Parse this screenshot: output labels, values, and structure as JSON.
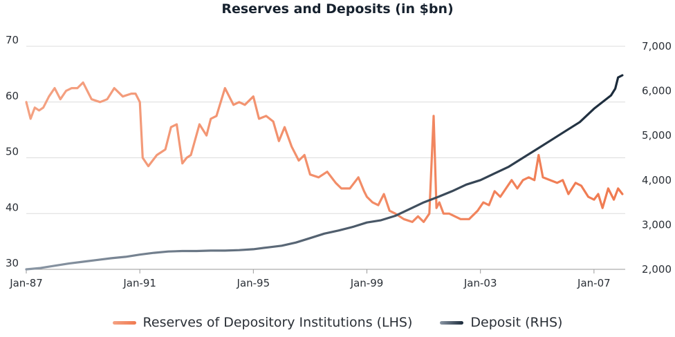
{
  "chart_data": {
    "type": "line",
    "title": "Reserves and Deposits (in $bn)",
    "x_tick_labels": [
      "Jan-87",
      "Jan-91",
      "Jan-95",
      "Jan-99",
      "Jan-03",
      "Jan-07"
    ],
    "x_tick_years": [
      1987,
      1991,
      1995,
      1999,
      2003,
      2007
    ],
    "xlim": [
      1987.0,
      2008.1
    ],
    "y_left": {
      "ticks": [
        "30",
        "40",
        "50",
        "60",
        "70"
      ],
      "lim": [
        30,
        70
      ]
    },
    "y_right": {
      "ticks": [
        "2,000",
        "3,000",
        "4,000",
        "5,000",
        "6,000",
        "7,000"
      ],
      "lim": [
        2000,
        7000
      ]
    },
    "grid": "horizontal",
    "legend_position": "bottom",
    "series": [
      {
        "name": "Reserves of Depository Institutions (LHS)",
        "axis": "left",
        "color": "#f07a50",
        "x": [
          1987.0,
          1987.15,
          1987.3,
          1987.45,
          1987.6,
          1987.8,
          1988.0,
          1988.2,
          1988.4,
          1988.6,
          1988.8,
          1989.0,
          1989.3,
          1989.6,
          1989.85,
          1990.1,
          1990.4,
          1990.7,
          1990.85,
          1991.0,
          1991.1,
          1991.3,
          1991.6,
          1991.9,
          1992.1,
          1992.3,
          1992.5,
          1992.65,
          1992.8,
          1993.1,
          1993.35,
          1993.5,
          1993.7,
          1994.0,
          1994.3,
          1994.5,
          1994.7,
          1995.0,
          1995.2,
          1995.45,
          1995.7,
          1995.9,
          1996.1,
          1996.35,
          1996.6,
          1996.8,
          1997.0,
          1997.3,
          1997.6,
          1997.9,
          1998.1,
          1998.4,
          1998.7,
          1998.9,
          1999.0,
          1999.2,
          1999.4,
          1999.6,
          1999.8,
          2000.0,
          2000.3,
          2000.6,
          2000.8,
          2001.0,
          2001.2,
          2001.35,
          2001.45,
          2001.55,
          2001.7,
          2001.9,
          2002.1,
          2002.3,
          2002.6,
          2002.9,
          2003.1,
          2003.3,
          2003.5,
          2003.7,
          2003.9,
          2004.1,
          2004.3,
          2004.5,
          2004.7,
          2004.9,
          2005.05,
          2005.2,
          2005.45,
          2005.7,
          2005.9,
          2006.1,
          2006.35,
          2006.55,
          2006.8,
          2007.0,
          2007.15,
          2007.3,
          2007.5,
          2007.7,
          2007.85,
          2008.0
        ],
        "values": [
          60,
          57,
          59,
          58.5,
          59,
          61,
          62.5,
          60.5,
          62,
          62.5,
          62.5,
          63.5,
          60.5,
          60,
          60.5,
          62.5,
          61,
          61.5,
          61.5,
          60,
          50,
          48.5,
          50.5,
          51.5,
          55.5,
          56,
          49,
          50,
          50.5,
          56,
          54,
          57,
          57.5,
          62.5,
          59.5,
          60,
          59.5,
          61,
          57,
          57.5,
          56.5,
          53,
          55.5,
          52,
          49.5,
          50.5,
          47,
          46.5,
          47.5,
          45.5,
          44.5,
          44.5,
          46.5,
          44,
          43,
          42,
          41.5,
          43.5,
          40.5,
          40,
          39,
          38.5,
          39.5,
          38.5,
          40,
          57.5,
          41,
          42,
          40,
          40,
          39.5,
          39,
          39,
          40.5,
          42,
          41.5,
          44,
          43,
          44.5,
          46,
          44.5,
          46,
          46.5,
          46,
          50.5,
          46.5,
          46,
          45.5,
          46,
          43.5,
          45.5,
          45,
          43,
          42.5,
          43.5,
          41,
          44.5,
          42.5,
          44.5,
          43.5
        ],
        "comment_none": ""
      },
      {
        "name": "Deposit (RHS)",
        "axis": "right",
        "color": "#1a2a3a",
        "x": [
          1987.0,
          1987.5,
          1988.0,
          1988.5,
          1989.0,
          1989.5,
          1990.0,
          1990.5,
          1991.0,
          1991.5,
          1992.0,
          1992.5,
          1993.0,
          1993.5,
          1994.0,
          1994.5,
          1995.0,
          1995.5,
          1996.0,
          1996.5,
          1997.0,
          1997.5,
          1998.0,
          1998.5,
          1999.0,
          1999.5,
          2000.0,
          2000.5,
          2001.0,
          2001.5,
          2002.0,
          2002.5,
          2003.0,
          2003.5,
          2004.0,
          2004.5,
          2005.0,
          2005.5,
          2006.0,
          2006.5,
          2007.0,
          2007.3,
          2007.6,
          2007.75,
          2007.85,
          2008.0
        ],
        "values": [
          2000,
          2030,
          2080,
          2130,
          2170,
          2210,
          2250,
          2280,
          2330,
          2370,
          2400,
          2410,
          2410,
          2420,
          2420,
          2430,
          2450,
          2490,
          2530,
          2600,
          2700,
          2800,
          2870,
          2950,
          3050,
          3100,
          3200,
          3350,
          3500,
          3620,
          3750,
          3900,
          4000,
          4150,
          4300,
          4500,
          4700,
          4900,
          5100,
          5300,
          5600,
          5750,
          5900,
          6050,
          6300,
          6350
        ]
      }
    ]
  }
}
